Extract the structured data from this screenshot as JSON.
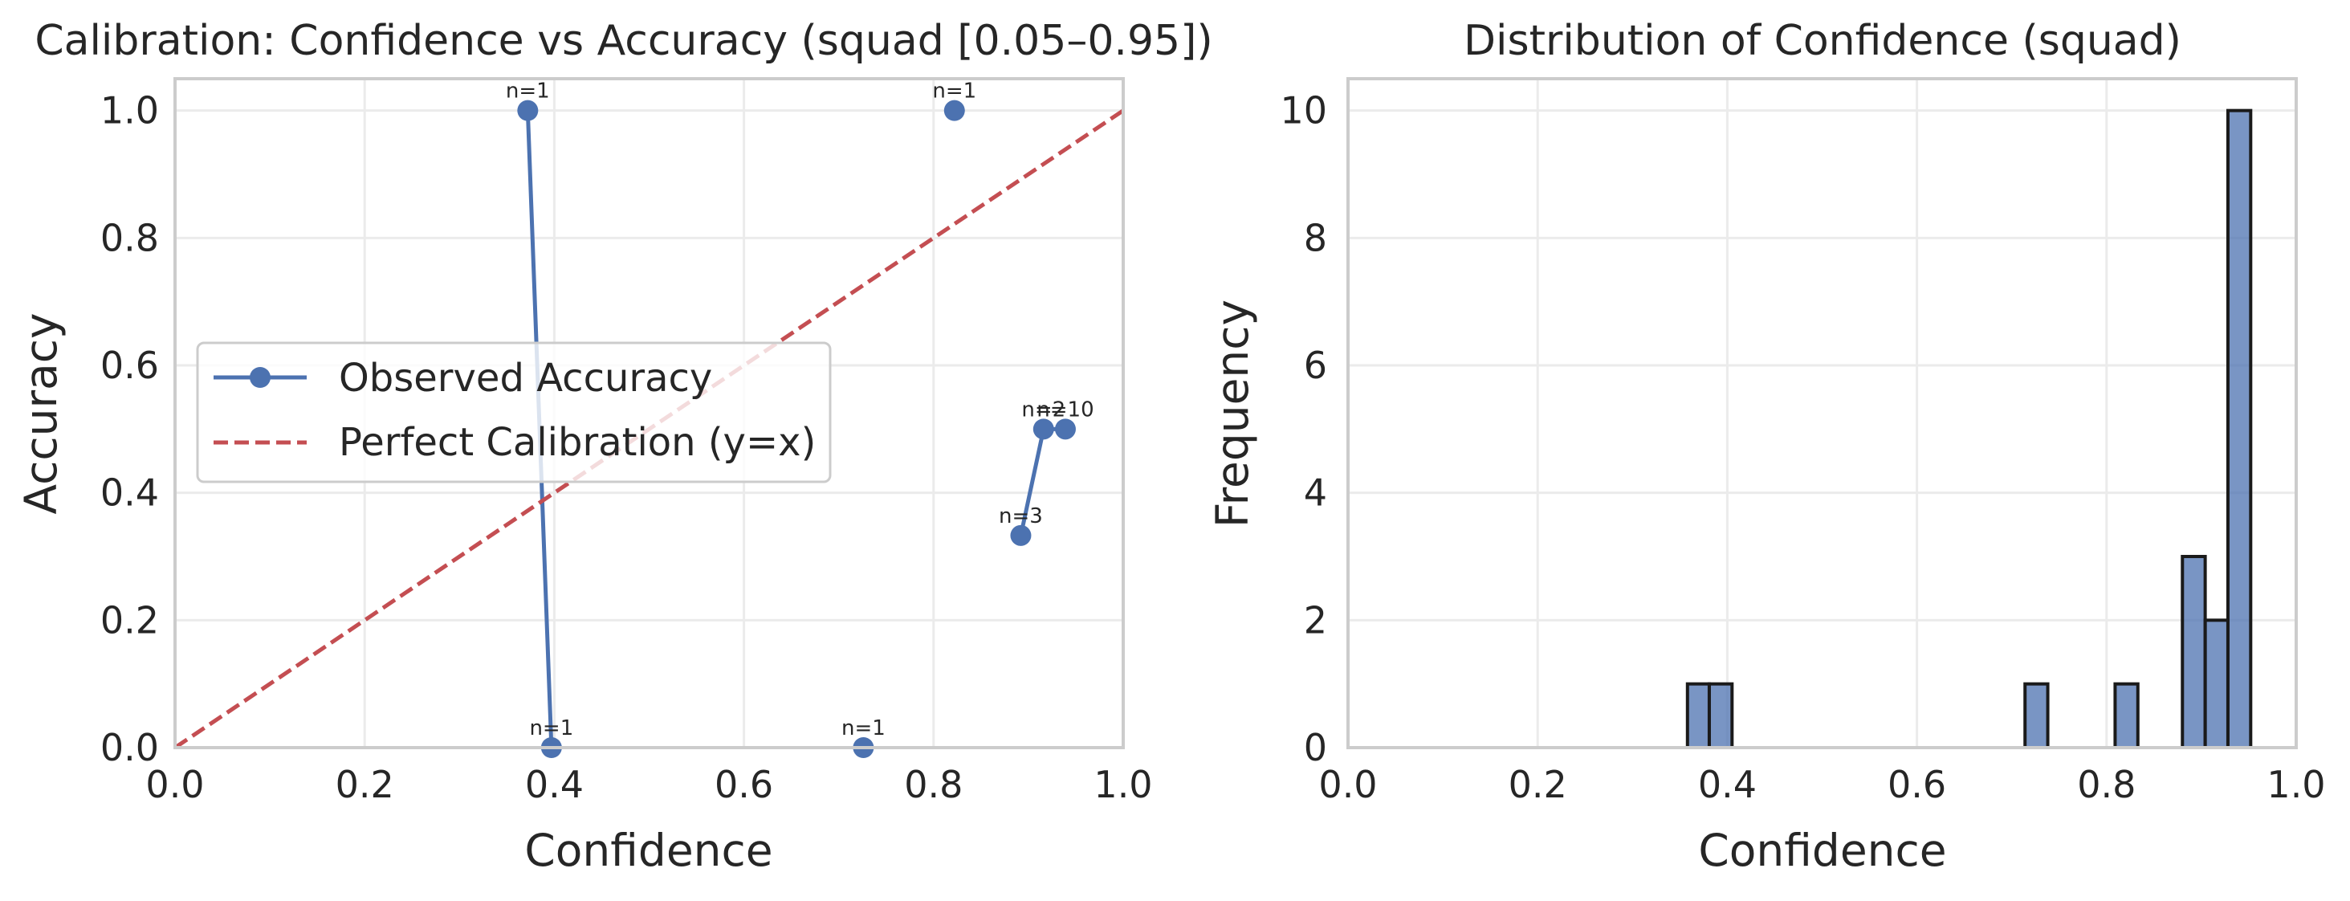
{
  "colors": {
    "series": "#4c72b0",
    "reference": "#c44e52",
    "hist_fill": "#4c72b0",
    "hist_edge": "#1a1a1a",
    "grid": "#ebebeb",
    "frame": "#cccccc"
  },
  "chart_data": [
    {
      "type": "line",
      "title": "Calibration: Confidence vs Accuracy (squad [0.05–0.95])",
      "xlabel": "Confidence",
      "ylabel": "Accuracy",
      "xlim": [
        0.0,
        1.0
      ],
      "ylim": [
        0.0,
        1.05
      ],
      "xticks": [
        "0.0",
        "0.2",
        "0.4",
        "0.6",
        "0.8",
        "1.0"
      ],
      "yticks": [
        "0.0",
        "0.2",
        "0.4",
        "0.6",
        "0.8",
        "1.0"
      ],
      "grid": true,
      "legend_position": "center-left",
      "series": [
        {
          "name": "Observed Accuracy",
          "style": "line-with-markers",
          "points": [
            {
              "x": 0.372,
              "y": 1.0,
              "label": "n=1"
            },
            {
              "x": 0.397,
              "y": 0.0,
              "label": "n=1"
            }
          ]
        },
        {
          "name": "",
          "style": "markers-only",
          "points": [
            {
              "x": 0.726,
              "y": 0.0,
              "label": "n=1"
            },
            {
              "x": 0.822,
              "y": 1.0,
              "label": "n=1"
            }
          ]
        },
        {
          "name": "",
          "style": "line-with-markers",
          "points": [
            {
              "x": 0.892,
              "y": 0.333,
              "label": "n=3"
            },
            {
              "x": 0.916,
              "y": 0.5,
              "label": "n=2"
            },
            {
              "x": 0.939,
              "y": 0.5,
              "label": "n=10"
            }
          ]
        },
        {
          "name": "Perfect Calibration (y=x)",
          "style": "dashed",
          "points": [
            {
              "x": 0.0,
              "y": 0.0
            },
            {
              "x": 1.0,
              "y": 1.0
            }
          ]
        }
      ]
    },
    {
      "type": "bar",
      "title": "Distribution of Confidence (squad)",
      "xlabel": "Confidence",
      "ylabel": "Frequency",
      "xlim": [
        0.0,
        1.0
      ],
      "ylim": [
        0,
        10.5
      ],
      "xticks": [
        "0.0",
        "0.2",
        "0.4",
        "0.6",
        "0.8",
        "1.0"
      ],
      "yticks": [
        "0",
        "2",
        "4",
        "6",
        "8",
        "10"
      ],
      "grid": true,
      "bins": [
        {
          "x0": 0.358,
          "x1": 0.381,
          "count": 1
        },
        {
          "x0": 0.381,
          "x1": 0.405,
          "count": 1
        },
        {
          "x0": 0.714,
          "x1": 0.738,
          "count": 1
        },
        {
          "x0": 0.809,
          "x1": 0.833,
          "count": 1
        },
        {
          "x0": 0.88,
          "x1": 0.904,
          "count": 3
        },
        {
          "x0": 0.904,
          "x1": 0.928,
          "count": 2
        },
        {
          "x0": 0.928,
          "x1": 0.952,
          "count": 10
        }
      ]
    }
  ]
}
